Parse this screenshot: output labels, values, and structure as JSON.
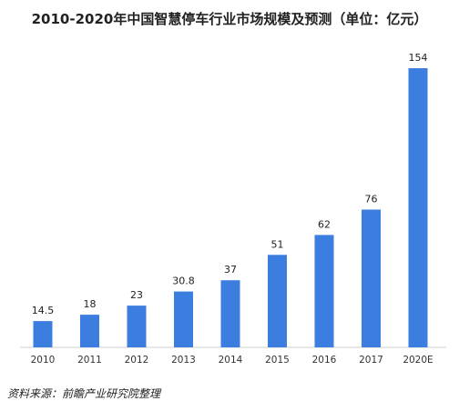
{
  "chart_data": {
    "type": "bar",
    "title": "2010-2020年中国智慧停车行业市场规模及预测（单位：亿元）",
    "categories": [
      "2010",
      "2011",
      "2012",
      "2013",
      "2014",
      "2015",
      "2016",
      "2017",
      "2020E"
    ],
    "values": [
      14.5,
      18,
      23,
      30.8,
      37,
      51,
      62,
      76,
      154
    ],
    "value_labels": [
      "14.5",
      "18",
      "23",
      "30.8",
      "37",
      "51",
      "62",
      "76",
      "154"
    ],
    "xlabel": "",
    "ylabel": "",
    "ylim": [
      0,
      154
    ],
    "grid": false,
    "legend": "none",
    "bar_color": "#3c7de0"
  },
  "source": "资料来源：前瞻产业研究院整理"
}
